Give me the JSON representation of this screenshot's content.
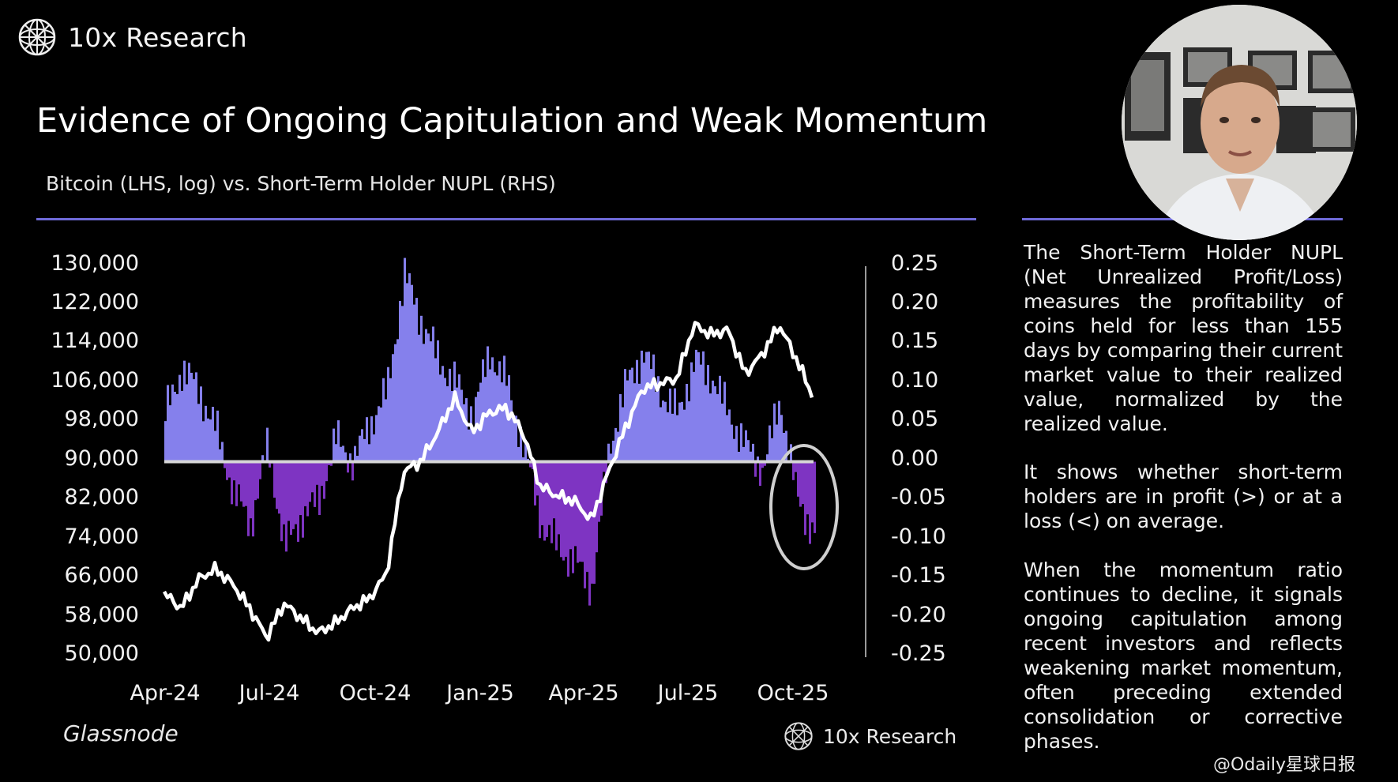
{
  "brand": {
    "name": "10x Research"
  },
  "header": {
    "title": "Evidence of Ongoing Capitulation and Weak Momentum",
    "subtitle": "Bitcoin (LHS, log) vs. Short-Term Holder NUPL (RHS)"
  },
  "colors": {
    "accent_rule": "#6f6ad8",
    "nupl_positive": "#8580ec",
    "nupl_negative": "#7e34c2",
    "btc_line": "#ffffff",
    "zero_line": "#d6d6d6",
    "highlight_ellipse": "#cfcfcf"
  },
  "chart_data": {
    "type": "line",
    "title": "Bitcoin (LHS, log) vs. Short-Term Holder NUPL (RHS)",
    "x_tick_labels": [
      "Apr-24",
      "Jul-24",
      "Oct-24",
      "Jan-25",
      "Apr-25",
      "Jul-25",
      "Oct-25"
    ],
    "y_left_tick_labels": [
      "130,000",
      "122,000",
      "114,000",
      "106,000",
      "98,000",
      "90,000",
      "82,000",
      "74,000",
      "66,000",
      "58,000",
      "50,000"
    ],
    "y_right_tick_labels": [
      "0.25",
      "0.20",
      "0.15",
      "0.10",
      "0.05",
      "0.00",
      "-0.05",
      "-0.10",
      "-0.15",
      "-0.20",
      "-0.25"
    ],
    "y_left_range": [
      50000,
      130000
    ],
    "y_right_range": [
      -0.25,
      0.25
    ],
    "source": "Glassnode",
    "annotation": "ellipse highlighting negative NUPL in Oct-25",
    "series": [
      {
        "name": "Bitcoin",
        "axis": "left",
        "style": "line",
        "x": [
          "2024-04-01",
          "2024-04-15",
          "2024-05-01",
          "2024-05-15",
          "2024-06-01",
          "2024-06-15",
          "2024-07-01",
          "2024-07-15",
          "2024-08-01",
          "2024-08-15",
          "2024-09-01",
          "2024-09-15",
          "2024-10-01",
          "2024-10-15",
          "2024-11-01",
          "2024-11-15",
          "2024-12-01",
          "2024-12-15",
          "2025-01-01",
          "2025-01-15",
          "2025-02-01",
          "2025-02-15",
          "2025-03-01",
          "2025-03-15",
          "2025-04-01",
          "2025-04-15",
          "2025-05-01",
          "2025-05-15",
          "2025-06-01",
          "2025-06-15",
          "2025-07-01",
          "2025-07-15",
          "2025-08-01",
          "2025-08-15",
          "2025-09-01",
          "2025-09-15",
          "2025-10-01",
          "2025-10-15",
          "2025-11-01"
        ],
        "values": [
          63000,
          60000,
          66000,
          68000,
          65000,
          60000,
          54000,
          61000,
          58000,
          55000,
          57000,
          60000,
          62000,
          67000,
          88000,
          90000,
          96000,
          103000,
          96000,
          100000,
          101000,
          96000,
          85000,
          83000,
          82000,
          78000,
          88000,
          97000,
          105000,
          106000,
          107000,
          118000,
          116000,
          117000,
          108000,
          112000,
          118000,
          111000,
          103000
        ]
      },
      {
        "name": "Short-Term Holder NUPL",
        "axis": "right",
        "style": "area",
        "x": [
          "2024-04-01",
          "2024-04-15",
          "2024-05-01",
          "2024-05-15",
          "2024-06-01",
          "2024-06-15",
          "2024-07-01",
          "2024-07-15",
          "2024-08-01",
          "2024-08-15",
          "2024-09-01",
          "2024-09-15",
          "2024-10-01",
          "2024-10-15",
          "2024-11-01",
          "2024-11-15",
          "2024-12-01",
          "2024-12-15",
          "2025-01-01",
          "2025-01-15",
          "2025-02-01",
          "2025-02-15",
          "2025-03-01",
          "2025-03-15",
          "2025-04-01",
          "2025-04-15",
          "2025-05-01",
          "2025-05-15",
          "2025-06-01",
          "2025-06-15",
          "2025-07-01",
          "2025-07-15",
          "2025-08-01",
          "2025-08-15",
          "2025-09-01",
          "2025-09-15",
          "2025-10-01",
          "2025-10-15",
          "2025-11-01"
        ],
        "values": [
          0.06,
          0.12,
          0.09,
          0.04,
          -0.04,
          -0.08,
          0.02,
          -0.11,
          -0.07,
          -0.05,
          0.03,
          0.0,
          0.05,
          0.09,
          0.24,
          0.18,
          0.13,
          0.1,
          0.06,
          0.14,
          0.1,
          0.02,
          -0.08,
          -0.11,
          -0.13,
          -0.16,
          0.02,
          0.1,
          0.14,
          0.09,
          0.06,
          0.13,
          0.11,
          0.06,
          0.02,
          -0.01,
          0.08,
          -0.05,
          -0.09
        ]
      }
    ]
  },
  "sidebar": {
    "paragraphs": [
      "The Short-Term Holder NUPL (Net Unrealized Profit/Loss) measures the profitability of coins held for less than 155 days by comparing their current market value to their realized value, normalized by the realized value.",
      "It shows whether short-term holders are in profit (>) or at a loss (<) on average.",
      "When the momentum ratio continues to decline, it signals ongoing capitulation among recent investors and reflects weakening market momentum, often preceding extended consolidation or corrective phases."
    ]
  },
  "footer": {
    "source": "Glassnode",
    "brand": "10x Research"
  },
  "watermark": "@Odaily星球日报"
}
